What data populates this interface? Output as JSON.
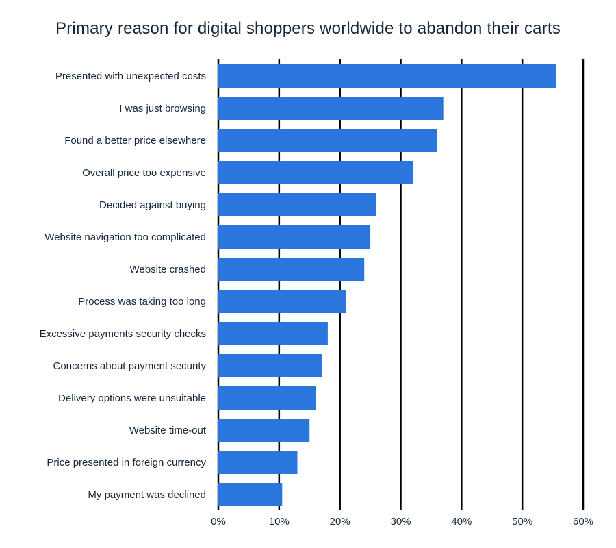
{
  "chart_data": {
    "type": "bar",
    "orientation": "horizontal",
    "title": "Primary reason for digital shoppers worldwide to abandon their carts",
    "xlabel": "",
    "ylabel": "",
    "xlim": [
      0,
      60
    ],
    "x_ticks": [
      "0%",
      "10%",
      "20%",
      "30%",
      "40%",
      "50%",
      "60%"
    ],
    "x_tick_values": [
      0,
      10,
      20,
      30,
      40,
      50,
      60
    ],
    "grid": "vertical lines at major ticks",
    "bar_color": "#2a76dd",
    "categories": [
      "Presented with unexpected costs",
      "I was just browsing",
      "Found a better price elsewhere",
      "Overall price too expensive",
      "Decided against buying",
      "Website navigation too complicated",
      "Website crashed",
      "Process was taking too long",
      "Excessive payments security checks",
      "Concerns about payment security",
      "Delivery options were unsuitable",
      "Website time-out",
      "Price presented in foreign currency",
      "My payment was declined"
    ],
    "values": [
      55.5,
      37,
      36,
      32,
      26,
      25,
      24,
      21,
      18,
      17,
      16,
      15,
      13,
      10.5
    ]
  }
}
